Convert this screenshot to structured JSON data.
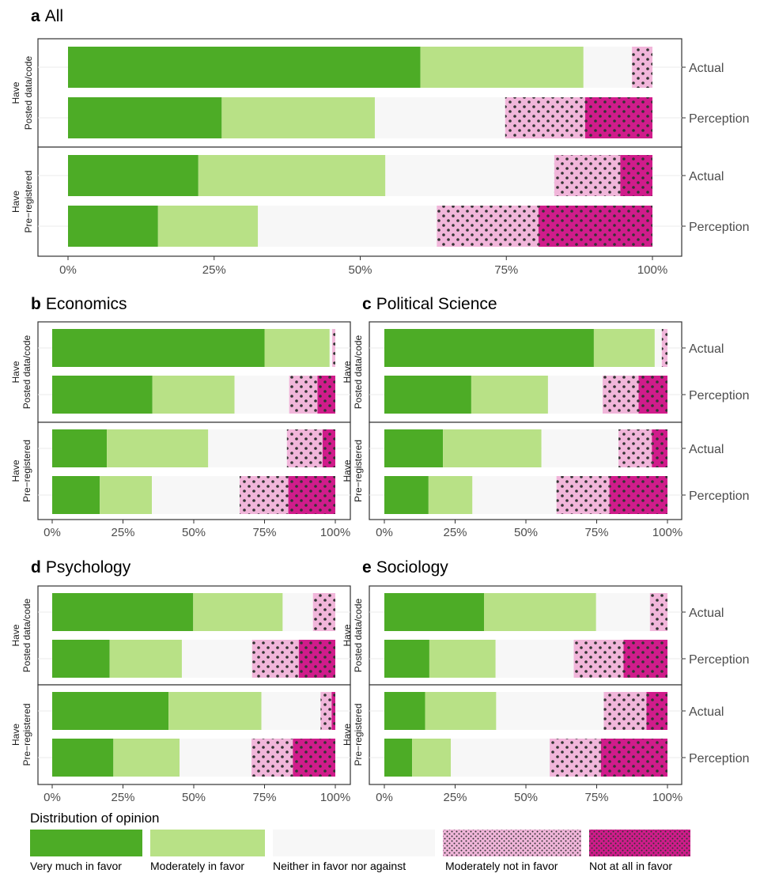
{
  "chart_data": [
    {
      "type": "bar",
      "letter": "a",
      "title": "All",
      "xlim": [
        0,
        100
      ],
      "ticks": [
        "0%",
        "25%",
        "50%",
        "75%",
        "100%"
      ],
      "groups": [
        {
          "label_lines": [
            "Have",
            "Posted data/code"
          ],
          "rows": [
            {
              "label": "Actual",
              "values": [
                60.3,
                27.9,
                8.3,
                3.5,
                0
              ]
            },
            {
              "label": "Perception",
              "values": [
                26.3,
                26.2,
                22.3,
                13.7,
                11.5
              ]
            }
          ]
        },
        {
          "label_lines": [
            "Have",
            "Pre−registered"
          ],
          "rows": [
            {
              "label": "Actual",
              "values": [
                22.3,
                32.0,
                28.9,
                11.3,
                5.5
              ]
            },
            {
              "label": "Perception",
              "values": [
                15.4,
                17.1,
                30.6,
                17.4,
                19.5
              ]
            }
          ]
        }
      ]
    },
    {
      "type": "bar",
      "letter": "b",
      "title": "Economics",
      "xlim": [
        0,
        100
      ],
      "ticks": [
        "0%",
        "25%",
        "50%",
        "75%",
        "100%"
      ],
      "groups": [
        {
          "label_lines": [
            "Have",
            "Posted data/code"
          ],
          "rows": [
            {
              "label": "Actual",
              "values": [
                75.0,
                23.0,
                0.9,
                1.1,
                0
              ]
            },
            {
              "label": "Perception",
              "values": [
                35.4,
                29.0,
                19.3,
                10.0,
                6.3
              ]
            }
          ]
        },
        {
          "label_lines": [
            "Have",
            "Pre−registered"
          ],
          "rows": [
            {
              "label": "Actual",
              "values": [
                19.3,
                35.8,
                27.8,
                12.6,
                4.5
              ]
            },
            {
              "label": "Perception",
              "values": [
                16.8,
                18.4,
                31.0,
                17.2,
                16.6
              ]
            }
          ]
        }
      ]
    },
    {
      "type": "bar",
      "letter": "c",
      "title": "Political Science",
      "xlim": [
        0,
        100
      ],
      "ticks": [
        "0%",
        "25%",
        "50%",
        "75%",
        "100%"
      ],
      "groups": [
        {
          "label_lines": [
            "Have",
            "Posted data/code"
          ],
          "rows": [
            {
              "label": "Actual",
              "values": [
                74.0,
                21.5,
                2.5,
                2.0,
                0
              ]
            },
            {
              "label": "Perception",
              "values": [
                30.7,
                27.1,
                19.3,
                12.7,
                10.2
              ]
            }
          ]
        },
        {
          "label_lines": [
            "Have",
            "Pre−registered"
          ],
          "rows": [
            {
              "label": "Actual",
              "values": [
                20.7,
                34.8,
                27.2,
                11.8,
                5.5
              ]
            },
            {
              "label": "Perception",
              "values": [
                15.6,
                15.5,
                29.7,
                18.7,
                20.5
              ]
            }
          ]
        }
      ]
    },
    {
      "type": "bar",
      "letter": "d",
      "title": "Psychology",
      "xlim": [
        0,
        100
      ],
      "ticks": [
        "0%",
        "25%",
        "50%",
        "75%",
        "100%"
      ],
      "groups": [
        {
          "label_lines": [
            "Have",
            "Posted data/code"
          ],
          "rows": [
            {
              "label": "Actual",
              "values": [
                49.8,
                31.6,
                10.7,
                7.9,
                0
              ]
            },
            {
              "label": "Perception",
              "values": [
                20.3,
                25.5,
                24.8,
                16.5,
                12.9
              ]
            }
          ]
        },
        {
          "label_lines": [
            "Have",
            "Pre−registered"
          ],
          "rows": [
            {
              "label": "Actual",
              "values": [
                41.1,
                32.8,
                20.9,
                3.9,
                1.3
              ]
            },
            {
              "label": "Perception",
              "values": [
                21.6,
                23.4,
                25.4,
                14.6,
                15.0
              ]
            }
          ]
        }
      ]
    },
    {
      "type": "bar",
      "letter": "e",
      "title": "Sociology",
      "xlim": [
        0,
        100
      ],
      "ticks": [
        "0%",
        "25%",
        "50%",
        "75%",
        "100%"
      ],
      "groups": [
        {
          "label_lines": [
            "Have",
            "Posted data/code"
          ],
          "rows": [
            {
              "label": "Actual",
              "values": [
                35.2,
                39.6,
                19.0,
                6.2,
                0
              ]
            },
            {
              "label": "Perception",
              "values": [
                15.9,
                23.4,
                27.6,
                17.6,
                15.5
              ]
            }
          ]
        },
        {
          "label_lines": [
            "Have",
            "Pre−registered"
          ],
          "rows": [
            {
              "label": "Actual",
              "values": [
                14.4,
                25.1,
                38.0,
                15.1,
                7.4
              ]
            },
            {
              "label": "Perception",
              "values": [
                9.8,
                13.7,
                34.9,
                18.1,
                23.5
              ]
            }
          ]
        }
      ]
    }
  ],
  "legend": {
    "title": "Distribution of opinion",
    "items": [
      {
        "label": "Very much in favor",
        "color": "#4dac26",
        "pattern": "none"
      },
      {
        "label": "Moderately in favor",
        "color": "#b8e186",
        "pattern": "none"
      },
      {
        "label": "Neither in favor nor against",
        "color": "#f7f7f7",
        "pattern": "none"
      },
      {
        "label": "Moderately not in favor",
        "color": "#f1b6da",
        "pattern": "dots"
      },
      {
        "label": "Not at all in favor",
        "color": "#d01c8b",
        "pattern": "dots"
      }
    ]
  }
}
